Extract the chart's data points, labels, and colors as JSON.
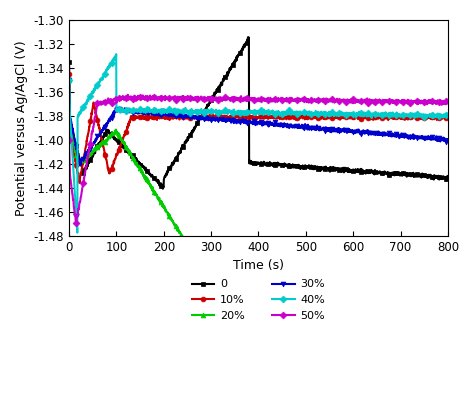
{
  "title": "",
  "xlabel": "Time (s)",
  "ylabel": "Potential versus Ag/AgCl (V)",
  "xlim": [
    0,
    800
  ],
  "ylim": [
    -1.48,
    -1.3
  ],
  "yticks": [
    -1.48,
    -1.46,
    -1.44,
    -1.42,
    -1.4,
    -1.38,
    -1.36,
    -1.34,
    -1.32,
    -1.3
  ],
  "xticks": [
    0,
    100,
    200,
    300,
    400,
    500,
    600,
    700,
    800
  ],
  "series": [
    {
      "label": "0",
      "color": "#000000",
      "marker": "s",
      "markersize": 3.5,
      "markevery": 30,
      "curve": "black"
    },
    {
      "label": "10%",
      "color": "#cc0000",
      "marker": "o",
      "markersize": 3.5,
      "markevery": 30,
      "curve": "red"
    },
    {
      "label": "20%",
      "color": "#00cc00",
      "marker": "^",
      "markersize": 3.5,
      "markevery": 30,
      "curve": "green"
    },
    {
      "label": "30%",
      "color": "#0000cc",
      "marker": "v",
      "markersize": 3.5,
      "markevery": 30,
      "curve": "blue"
    },
    {
      "label": "40%",
      "color": "#00cccc",
      "marker": "D",
      "markersize": 3.5,
      "markevery": 30,
      "curve": "cyan"
    },
    {
      "label": "50%",
      "color": "#cc00cc",
      "marker": "D",
      "markersize": 3.5,
      "markevery": 30,
      "curve": "magenta"
    }
  ],
  "linewidth": 1.5,
  "noise_amplitude": 0.0008
}
